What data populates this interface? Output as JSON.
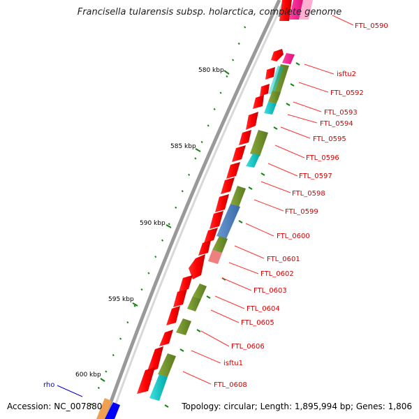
{
  "title": "Francisella tularensis subsp. holarctica, complete genome",
  "accession_label": "Accession: NC_007880",
  "topology_label": "Topology: circular; Length: 1,895,994 bp; Genes: 1,806",
  "kbp_ticks": [
    {
      "label": "580 kbp"
    },
    {
      "label": "585 kbp"
    },
    {
      "label": "590 kbp"
    },
    {
      "label": "595 kbp"
    },
    {
      "label": "600 kbp"
    }
  ],
  "gene_labels": [
    "FTL_0590",
    "isftu2",
    "FTL_0592",
    "FTL_0593",
    "FTL_0594",
    "FTL_0595",
    "FTL_0596",
    "FTL_0597",
    "FTL_0598",
    "FTL_0599",
    "FTL_0600",
    "FTL_0601",
    "FTL_0602",
    "FTL_0603",
    "FTL_0604",
    "FTL_0605",
    "FTL_0606",
    "isftu1",
    "FTL_0608"
  ],
  "rho_label": "rho",
  "colors": {
    "cds": "#ff0000",
    "olive": "#6b8e23",
    "cyan": "#00cccc",
    "blue": "#4f7fbf",
    "magenta": "#ff1493",
    "pink": "#f08080",
    "tick": "#1a7f1a",
    "label_red": "#d40000",
    "label_blue": "#0000cc",
    "backbone": "#888888"
  }
}
